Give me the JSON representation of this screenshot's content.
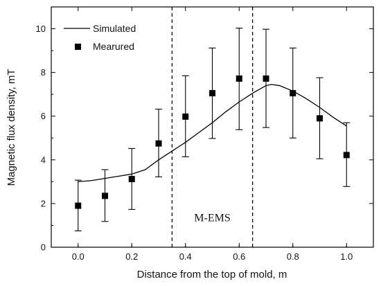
{
  "chart_data": {
    "type": "line",
    "title": "",
    "xlabel": "Distance from the top of mold,  m",
    "ylabel": "Magnetic flux density,  mT",
    "xlim": [
      -0.1,
      1.1
    ],
    "ylim": [
      0,
      11
    ],
    "xticks": [
      0.0,
      0.2,
      0.4,
      0.6,
      0.8,
      1.0
    ],
    "xtick_labels": [
      "0.0",
      "0.2",
      "0.4",
      "0.6",
      "0.8",
      "1.0"
    ],
    "yticks": [
      0,
      2,
      4,
      6,
      8,
      10
    ],
    "ytick_labels": [
      "0",
      "2",
      "4",
      "6",
      "8",
      "10"
    ],
    "grid": false,
    "legend": {
      "position": "top-left",
      "entries": [
        {
          "label": "Simulated",
          "marker": "line"
        },
        {
          "label": "Mearured",
          "marker": "square"
        }
      ]
    },
    "series": [
      {
        "name": "Simulated",
        "kind": "line",
        "x": [
          0.0,
          0.05,
          0.1,
          0.15,
          0.2,
          0.25,
          0.3,
          0.35,
          0.4,
          0.45,
          0.5,
          0.55,
          0.6,
          0.65,
          0.7,
          0.72,
          0.75,
          0.8,
          0.85,
          0.9,
          0.95,
          1.0
        ],
        "y": [
          3.0,
          3.05,
          3.15,
          3.25,
          3.35,
          3.55,
          4.0,
          4.4,
          4.8,
          5.25,
          5.7,
          6.2,
          6.65,
          7.05,
          7.4,
          7.45,
          7.4,
          7.15,
          6.8,
          6.4,
          5.95,
          5.55
        ]
      },
      {
        "name": "Mearured",
        "kind": "scatter",
        "x": [
          0.0,
          0.1,
          0.2,
          0.3,
          0.4,
          0.5,
          0.6,
          0.7,
          0.8,
          0.9,
          1.0
        ],
        "y": [
          1.9,
          2.35,
          3.12,
          4.75,
          5.98,
          7.05,
          7.72,
          7.72,
          7.05,
          5.9,
          4.22
        ],
        "error_low": [
          0.75,
          1.18,
          1.73,
          3.22,
          4.14,
          4.98,
          5.38,
          5.48,
          5.0,
          4.05,
          2.78
        ],
        "error_high": [
          3.07,
          3.55,
          4.52,
          6.32,
          7.85,
          9.12,
          10.03,
          9.98,
          9.12,
          7.76,
          5.7
        ]
      }
    ],
    "vertical_lines": [
      0.35,
      0.65
    ],
    "annotations": [
      {
        "text": "M-EMS",
        "x": 0.5,
        "y": 1.35
      }
    ]
  }
}
